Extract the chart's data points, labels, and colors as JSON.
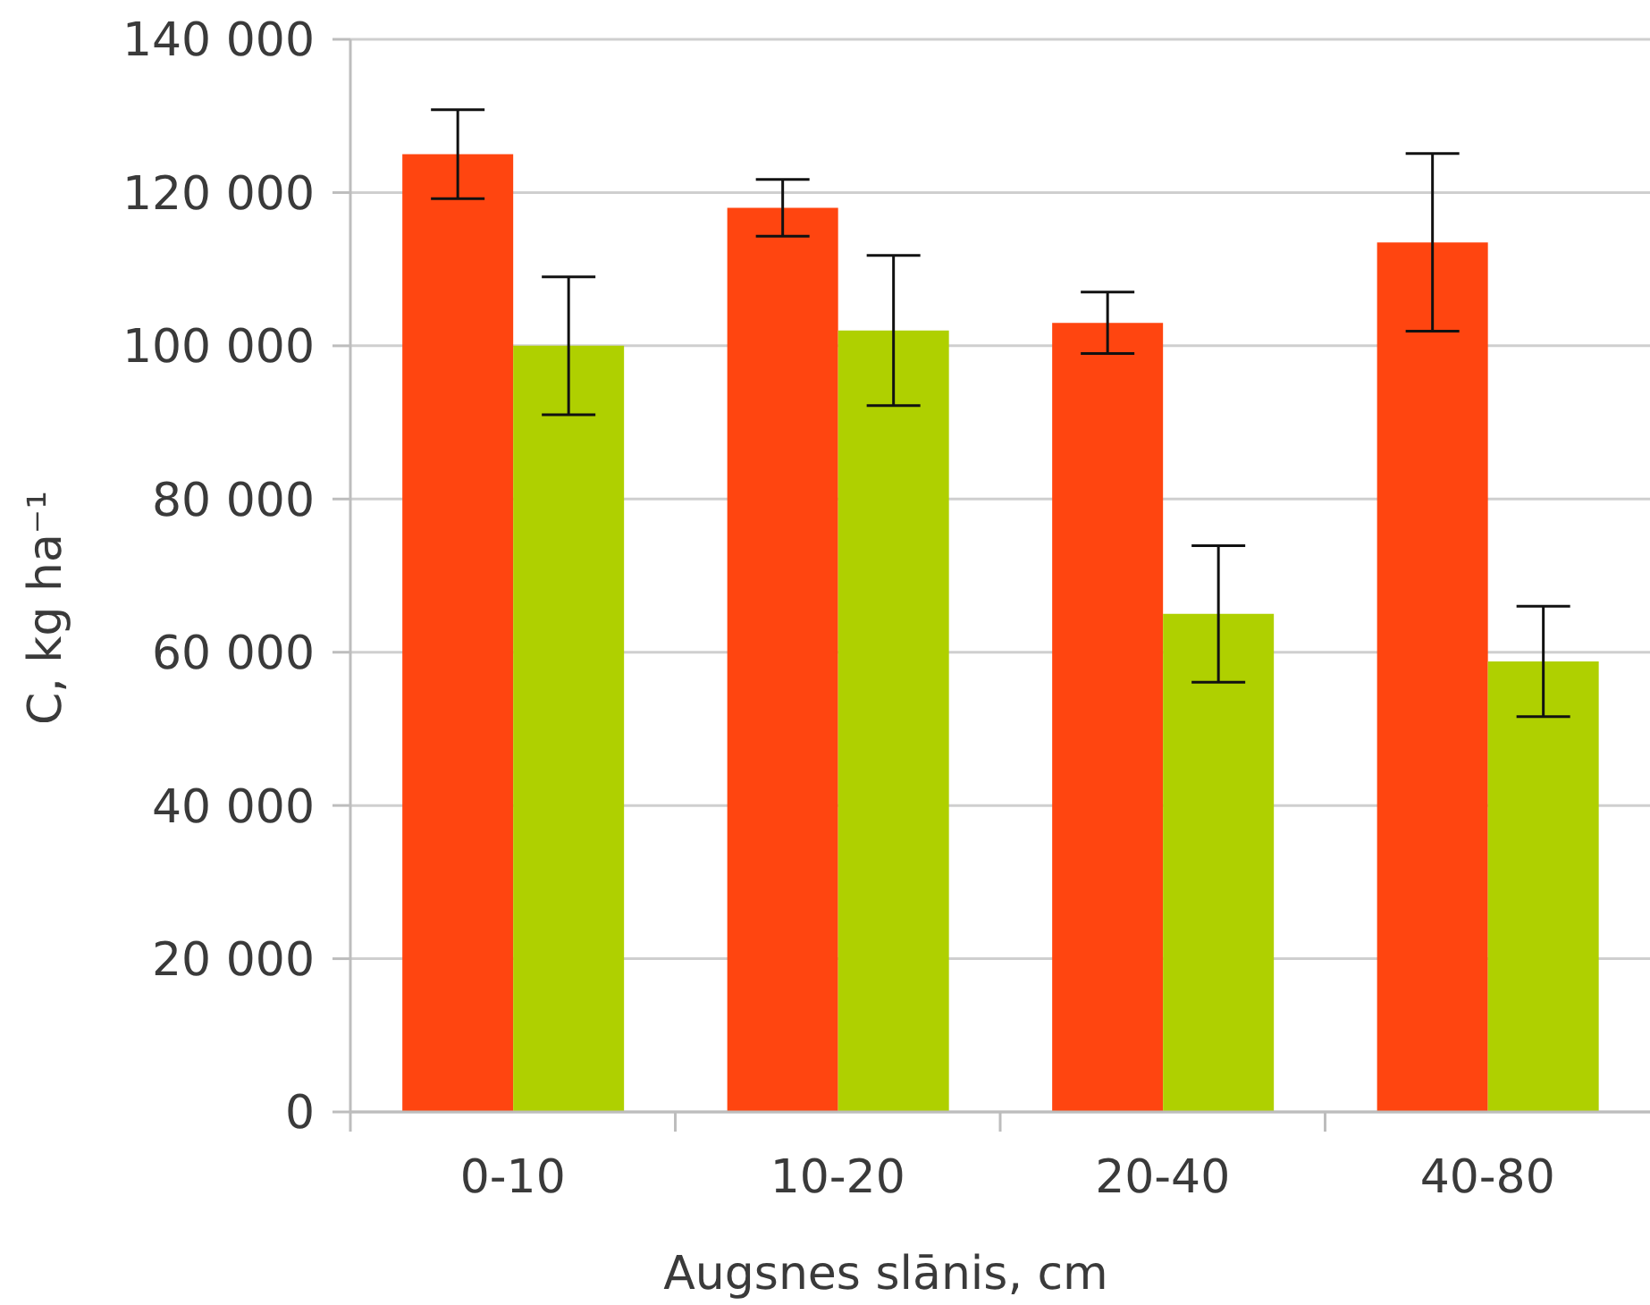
{
  "chart_data": {
    "type": "bar",
    "xlabel": "Augsnes slānis, cm",
    "ylabel": "C, kg ha⁻¹",
    "categories": [
      "0-10",
      "10-20",
      "20-40",
      "40-80"
    ],
    "series": [
      {
        "color": "#ff4510",
        "values": [
          125000,
          118000,
          103000,
          113500
        ],
        "errors": [
          5800,
          3700,
          4000,
          11600
        ]
      },
      {
        "color": "#afd000",
        "values": [
          100000,
          102000,
          65000,
          58800
        ],
        "errors": [
          9000,
          9800,
          8900,
          7200
        ]
      }
    ],
    "ylim": [
      0,
      140000
    ],
    "yticks": [
      0,
      {
        "value": 20000,
        "label": "20 000"
      },
      {
        "value": 40000,
        "label": "40 000"
      },
      {
        "value": 60000,
        "label": "60 000"
      },
      {
        "value": 80000,
        "label": "80 000"
      },
      {
        "value": 100000,
        "label": "100 000"
      },
      {
        "value": 120000,
        "label": "120 000"
      },
      {
        "value": 140000,
        "label": "140 000"
      }
    ],
    "grid": "y"
  }
}
